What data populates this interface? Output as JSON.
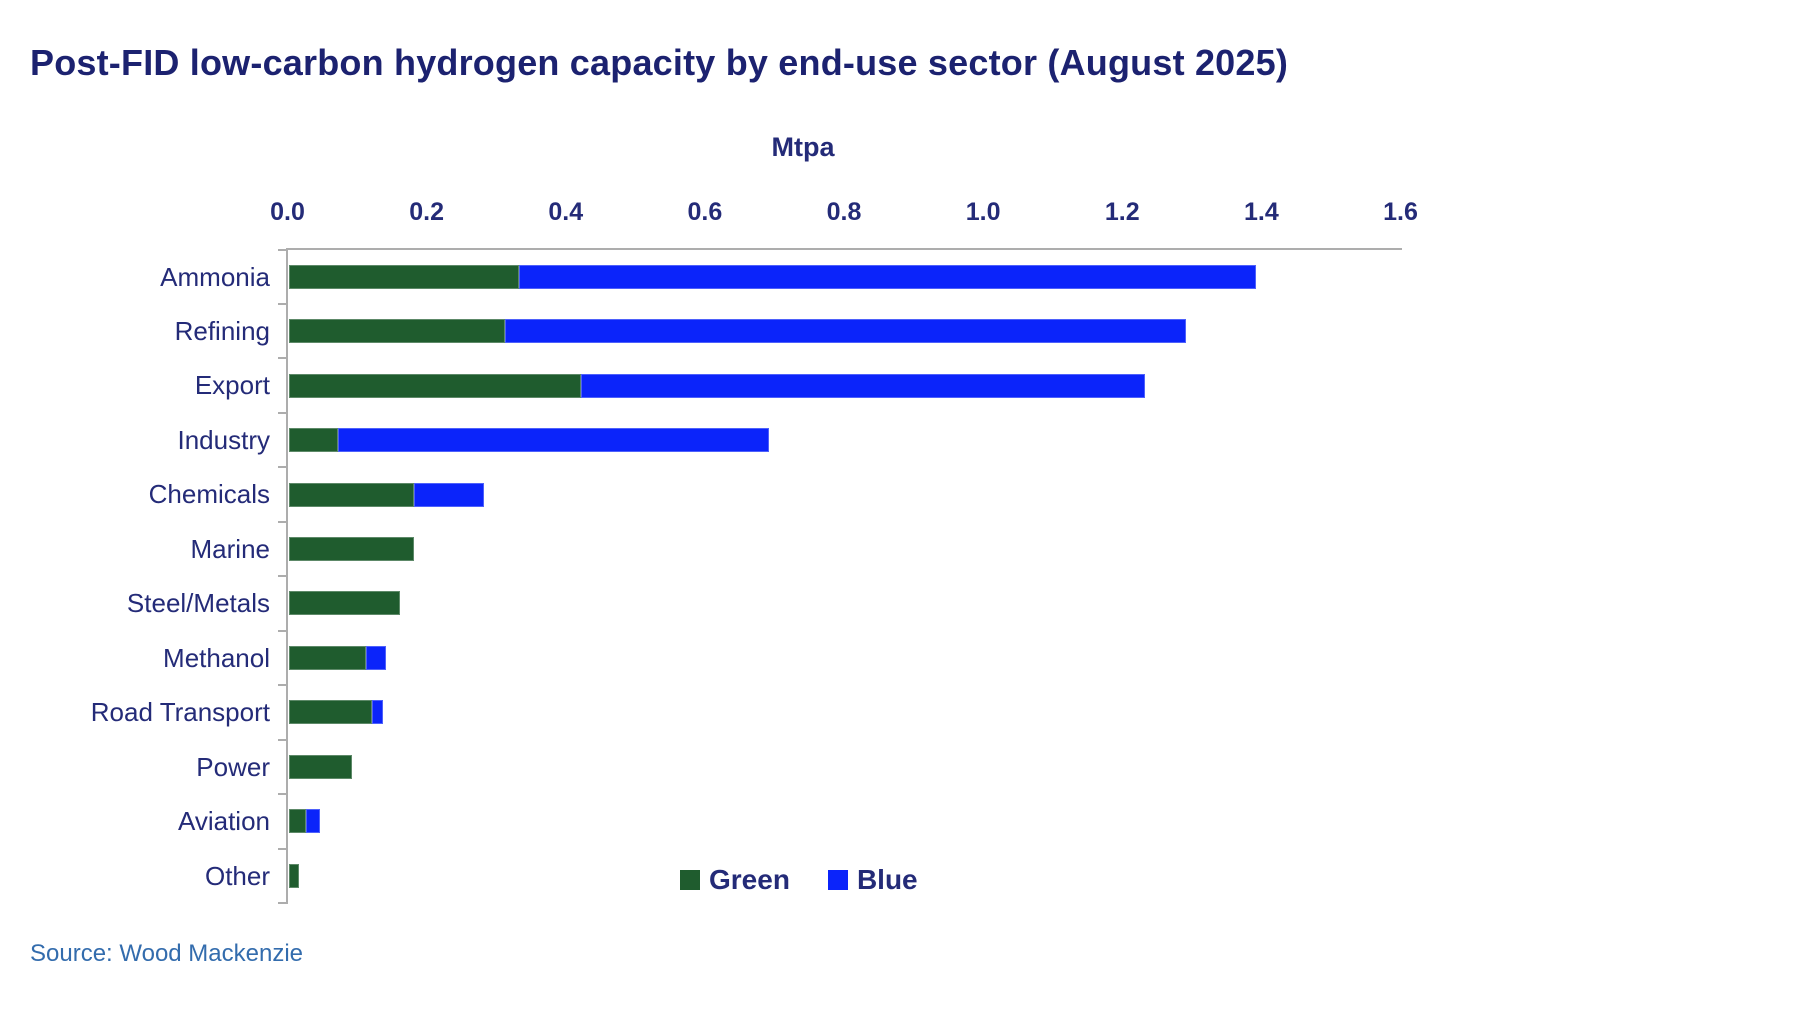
{
  "title": "Post-FID low-carbon hydrogen capacity by end-use sector (August 2025)",
  "source": "Source: Wood Mackenzie",
  "colors": {
    "title_navy": "#1c2270",
    "axis_text_navy": "#242b78",
    "axis_line_gray": "#adadad",
    "green": "#1f5c2e",
    "blue": "#0b24fa",
    "source_blue": "#336cad",
    "background": "#ffffff"
  },
  "chart_data": {
    "type": "bar",
    "orientation": "horizontal",
    "stacked": true,
    "x_axis_position": "top",
    "title": "Post-FID low-carbon hydrogen capacity by end-use sector (August 2025)",
    "unit_label": "Mtpa",
    "xlabel": "Mtpa",
    "ylabel": "",
    "xlim": [
      0,
      1.6
    ],
    "xtick_labels": [
      "0.0",
      "0.2",
      "0.4",
      "0.6",
      "0.8",
      "1.0",
      "1.2",
      "1.4",
      "1.6"
    ],
    "grid": false,
    "categories": [
      "Ammonia",
      "Refining",
      "Export",
      "Industry",
      "Chemicals",
      "Marine",
      "Steel/Metals",
      "Methanol",
      "Road Transport",
      "Power",
      "Aviation",
      "Other"
    ],
    "series": [
      {
        "name": "Green",
        "color": "#1f5c2e",
        "values": [
          0.33,
          0.31,
          0.42,
          0.07,
          0.18,
          0.18,
          0.16,
          0.11,
          0.12,
          0.09,
          0.025,
          0.015
        ]
      },
      {
        "name": "Blue",
        "color": "#0b24fa",
        "values": [
          1.06,
          0.98,
          0.81,
          0.62,
          0.1,
          0,
          0,
          0.03,
          0.015,
          0,
          0.02,
          0
        ]
      }
    ],
    "legend": {
      "entries": [
        "Green",
        "Blue"
      ],
      "position": "bottom-center"
    }
  }
}
